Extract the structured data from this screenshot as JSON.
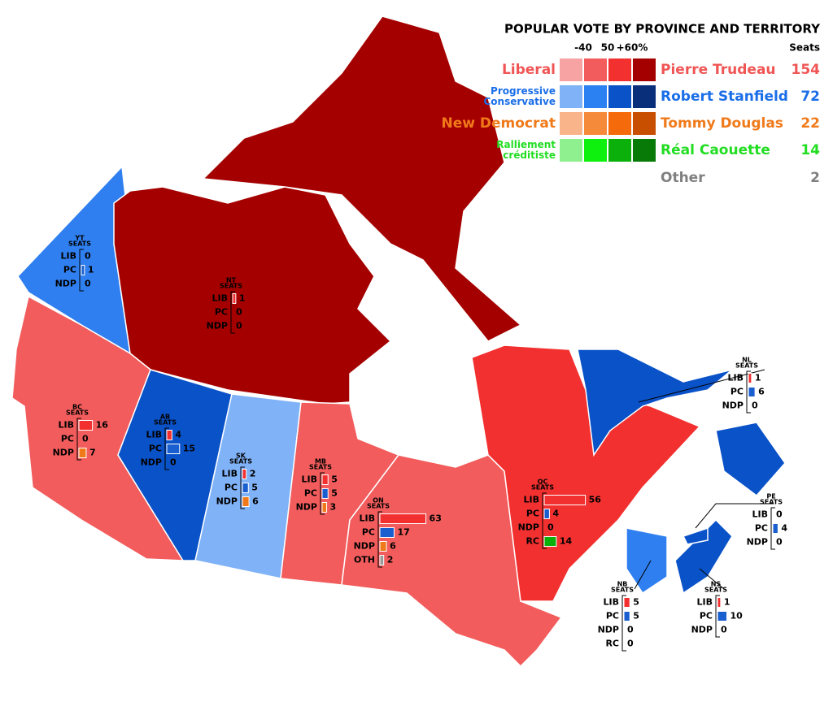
{
  "legend": {
    "title": "POPULAR VOTE BY PROVINCE AND TERRITORY",
    "scale": [
      "-40",
      "50",
      "+60%"
    ],
    "seats_heading": "Seats",
    "parties": [
      {
        "name": "Liberal",
        "leader": "Pierre Trudeau",
        "seats": 154,
        "color": "#f05555",
        "swatches": [
          "#f7a3a3",
          "#f25c5c",
          "#f33030",
          "#a50000"
        ]
      },
      {
        "name": "Progressive Conservative",
        "leader": "Robert Stanfield",
        "seats": 72,
        "color": "#1a6ee8",
        "swatches": [
          "#7fb2f7",
          "#2b80f2",
          "#0a52c8",
          "#0a2f7a"
        ]
      },
      {
        "name": "New Democrat",
        "leader": "Tommy Douglas",
        "seats": 22,
        "color": "#f07a1a",
        "swatches": [
          "#f9b48a",
          "#f58a3a",
          "#f56a0a",
          "#c84e00"
        ]
      },
      {
        "name": "Ralliement créditiste",
        "leader": "Réal Caouette",
        "seats": 14,
        "color": "#22dd22",
        "swatches": [
          "#8ff08f",
          "#0ef00e",
          "#0bb00b",
          "#087a08"
        ]
      }
    ],
    "other": {
      "name": "Other",
      "seats": 2,
      "color": "#808080"
    }
  },
  "party_colors": {
    "LIB": "#f33030",
    "PC": "#1a5fd0",
    "NDP": "#f07a1a",
    "RC": "#0bb00b",
    "OTH": "#999999"
  },
  "regions": [
    {
      "code": "YT",
      "heading": "SEATS",
      "color": "#2f7ff0",
      "rows": [
        {
          "party": "LIB",
          "seats": 0
        },
        {
          "party": "PC",
          "seats": 1
        },
        {
          "party": "NDP",
          "seats": 0
        }
      ]
    },
    {
      "code": "NT",
      "heading": "SEATS",
      "color": "#a50000",
      "rows": [
        {
          "party": "LIB",
          "seats": 1
        },
        {
          "party": "PC",
          "seats": 0
        },
        {
          "party": "NDP",
          "seats": 0
        }
      ]
    },
    {
      "code": "BC",
      "heading": "SEATS",
      "color": "#f25c5c",
      "rows": [
        {
          "party": "LIB",
          "seats": 16
        },
        {
          "party": "PC",
          "seats": 0
        },
        {
          "party": "NDP",
          "seats": 7
        }
      ]
    },
    {
      "code": "AB",
      "heading": "SEATS",
      "color": "#0a52c8",
      "rows": [
        {
          "party": "LIB",
          "seats": 4
        },
        {
          "party": "PC",
          "seats": 15
        },
        {
          "party": "NDP",
          "seats": 0
        }
      ]
    },
    {
      "code": "SK",
      "heading": "SEATS",
      "color": "#80b2f7",
      "rows": [
        {
          "party": "LIB",
          "seats": 2
        },
        {
          "party": "PC",
          "seats": 5
        },
        {
          "party": "NDP",
          "seats": 6
        }
      ]
    },
    {
      "code": "MB",
      "heading": "SEATS",
      "color": "#f25c5c",
      "rows": [
        {
          "party": "LIB",
          "seats": 5
        },
        {
          "party": "PC",
          "seats": 5
        },
        {
          "party": "NDP",
          "seats": 3
        }
      ]
    },
    {
      "code": "ON",
      "heading": "SEATS",
      "color": "#f25c5c",
      "rows": [
        {
          "party": "LIB",
          "seats": 63
        },
        {
          "party": "PC",
          "seats": 17
        },
        {
          "party": "NDP",
          "seats": 6
        },
        {
          "party": "OTH",
          "seats": 2
        }
      ]
    },
    {
      "code": "QC",
      "heading": "SEATS",
      "color": "#f33030",
      "rows": [
        {
          "party": "LIB",
          "seats": 56
        },
        {
          "party": "PC",
          "seats": 4
        },
        {
          "party": "NDP",
          "seats": 0
        },
        {
          "party": "RC",
          "seats": 14
        }
      ]
    },
    {
      "code": "NL",
      "heading": "SEATS",
      "color": "#0a52c8",
      "rows": [
        {
          "party": "LIB",
          "seats": 1
        },
        {
          "party": "PC",
          "seats": 6
        },
        {
          "party": "NDP",
          "seats": 0
        }
      ]
    },
    {
      "code": "NB",
      "heading": "SEATS",
      "color": "#2f7ff0",
      "rows": [
        {
          "party": "LIB",
          "seats": 5
        },
        {
          "party": "PC",
          "seats": 5
        },
        {
          "party": "NDP",
          "seats": 0
        },
        {
          "party": "RC",
          "seats": 0
        }
      ]
    },
    {
      "code": "NS",
      "heading": "SEATS",
      "color": "#0a52c8",
      "rows": [
        {
          "party": "LIB",
          "seats": 1
        },
        {
          "party": "PC",
          "seats": 10
        },
        {
          "party": "NDP",
          "seats": 0
        }
      ]
    },
    {
      "code": "PE",
      "heading": "SEATS",
      "color": "#0a52c8",
      "rows": [
        {
          "party": "LIB",
          "seats": 0
        },
        {
          "party": "PC",
          "seats": 4
        },
        {
          "party": "NDP",
          "seats": 0
        }
      ]
    }
  ]
}
